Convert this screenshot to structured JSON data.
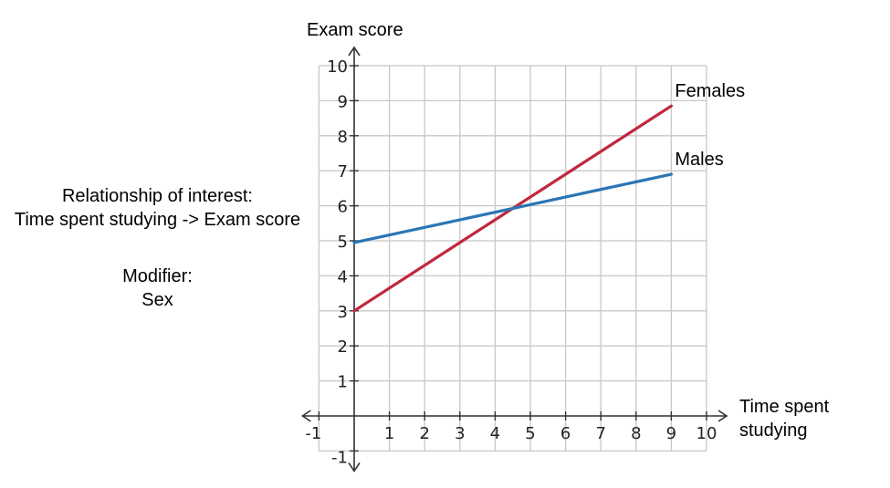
{
  "annotations": {
    "relationship_label": "Relationship of interest:",
    "relationship_value": "Time spent studying -> Exam score",
    "modifier_label": "Modifier:",
    "modifier_value": "Sex"
  },
  "chart_data": {
    "type": "line",
    "title": "",
    "xlabel": "Time spent studying",
    "ylabel": "Exam score",
    "xlim": [
      -1,
      10
    ],
    "ylim": [
      -1,
      10
    ],
    "grid": true,
    "x_ticks": [
      "-1",
      "1",
      "2",
      "3",
      "4",
      "5",
      "6",
      "7",
      "8",
      "9",
      "10"
    ],
    "y_ticks": [
      "-1",
      "1",
      "2",
      "3",
      "4",
      "5",
      "6",
      "7",
      "8",
      "9",
      "10"
    ],
    "series": [
      {
        "name": "Females",
        "color": "#c0283c",
        "x": [
          0,
          9
        ],
        "y": [
          3,
          8.85
        ]
      },
      {
        "name": "Males",
        "color": "#2a75b6",
        "x": [
          0,
          9
        ],
        "y": [
          4.95,
          6.9
        ]
      }
    ]
  }
}
